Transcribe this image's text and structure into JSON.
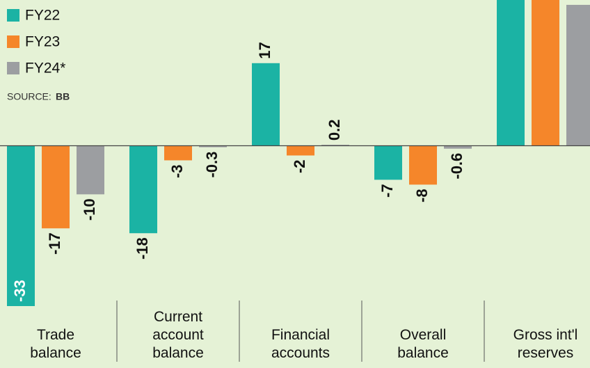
{
  "chart_data": {
    "type": "bar",
    "categories": [
      "Trade balance",
      "Current account balance",
      "Financial accounts",
      "Overall balance",
      "Gross int'l reserves"
    ],
    "series": [
      {
        "name": "FY22",
        "color": "#1bb3a4",
        "values": [
          -33,
          -18,
          17,
          -7,
          33
        ],
        "value_labels": [
          "-33",
          "-18",
          "17",
          "-7",
          null
        ]
      },
      {
        "name": "FY23",
        "color": "#f5862a",
        "values": [
          -17,
          -3,
          -2,
          -8,
          31
        ],
        "value_labels": [
          "-17",
          "-3",
          "-2",
          "-8",
          null
        ]
      },
      {
        "name": "FY24*",
        "color": "#9c9ea1",
        "values": [
          -10,
          -0.3,
          0.2,
          -0.6,
          29
        ],
        "value_labels": [
          "-10",
          "-0.3",
          "0.2",
          "-0.6",
          null
        ]
      }
    ],
    "source_label": "SOURCE:",
    "source": "BB",
    "ylim": [
      -33,
      30
    ],
    "legend": "top-left"
  }
}
